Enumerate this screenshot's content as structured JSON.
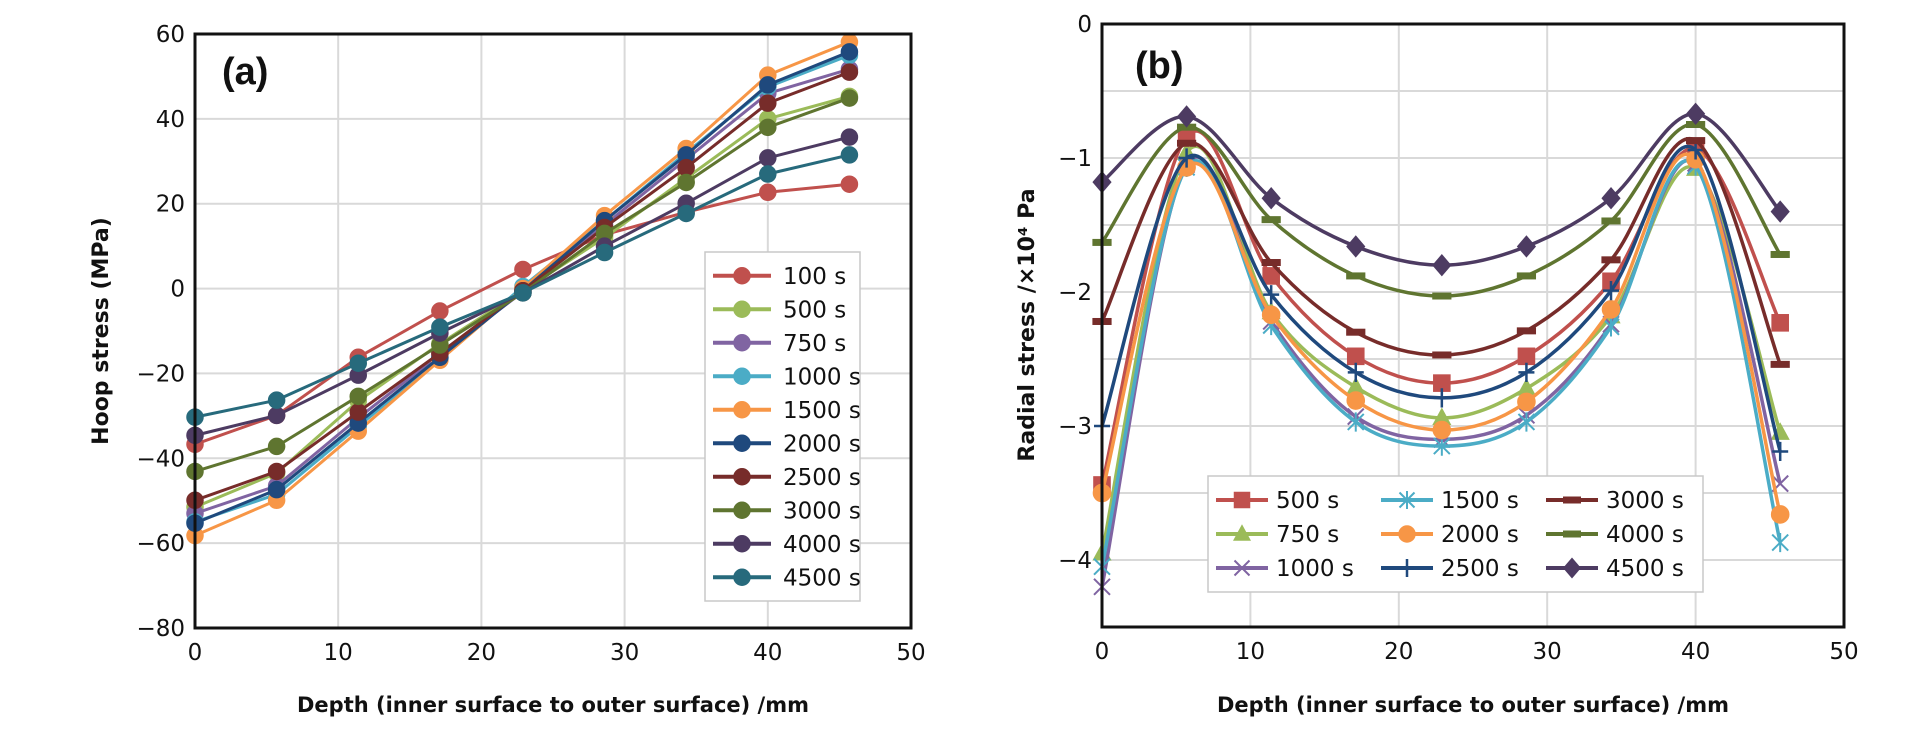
{
  "chart_data": [
    {
      "id": "a",
      "type": "line",
      "panel_label": "(a)",
      "title": "",
      "xlabel": "Depth (inner surface to outer surface) /mm",
      "ylabel": "Hoop stress (MPa)",
      "xlim": [
        0,
        50
      ],
      "ylim": [
        -80,
        60
      ],
      "xticks": [
        0,
        10,
        20,
        30,
        40,
        50
      ],
      "yticks": [
        -80,
        -60,
        -40,
        -20,
        0,
        20,
        40,
        60
      ],
      "grid": true,
      "smooth": false,
      "legend_position": "center-right",
      "legend_columns": 1,
      "x": [
        0,
        5.7,
        11.4,
        17.1,
        22.9,
        28.6,
        34.3,
        40,
        45.7
      ],
      "series": [
        {
          "name": "100 s",
          "color": "#c0504d",
          "marker": "circle",
          "values": [
            -36.7,
            -29.9,
            -16.2,
            -5.3,
            4.5,
            12.7,
            18.0,
            22.7,
            24.6
          ]
        },
        {
          "name": "500 s",
          "color": "#9bbb59",
          "marker": "circle",
          "values": [
            -51.5,
            -43.5,
            -26.5,
            -13.0,
            -0.5,
            12.0,
            26.0,
            40.0,
            45.3
          ]
        },
        {
          "name": "750 s",
          "color": "#8064a2",
          "marker": "circle",
          "values": [
            -53.0,
            -46.5,
            -30.5,
            -15.5,
            -0.8,
            15.0,
            30.5,
            46.0,
            51.7
          ]
        },
        {
          "name": "1000 s",
          "color": "#4bacc6",
          "marker": "circle",
          "values": [
            -55.0,
            -48.5,
            -32.5,
            -16.5,
            0.5,
            16.0,
            32.0,
            47.5,
            55.0
          ]
        },
        {
          "name": "1500 s",
          "color": "#f79646",
          "marker": "circle",
          "values": [
            -58.2,
            -49.9,
            -33.6,
            -16.9,
            0.0,
            17.2,
            33.0,
            50.3,
            58.1
          ]
        },
        {
          "name": "2000 s",
          "color": "#1f497d",
          "marker": "circle",
          "values": [
            -55.3,
            -47.4,
            -31.7,
            -16.2,
            -0.5,
            16.0,
            31.5,
            48.0,
            55.8
          ]
        },
        {
          "name": "2500 s",
          "color": "#772c2a",
          "marker": "circle",
          "values": [
            -49.9,
            -43.1,
            -29.1,
            -15.2,
            -0.5,
            14.4,
            28.5,
            43.7,
            51.0
          ]
        },
        {
          "name": "3000 s",
          "color": "#5f7530",
          "marker": "circle",
          "values": [
            -43.1,
            -37.2,
            -25.4,
            -13.3,
            -1.0,
            13.0,
            25.0,
            38.0,
            44.9
          ]
        },
        {
          "name": "4000 s",
          "color": "#4d3b62",
          "marker": "circle",
          "values": [
            -34.6,
            -29.9,
            -20.4,
            -10.5,
            -1.0,
            10.0,
            20.1,
            30.8,
            35.7
          ]
        },
        {
          "name": "4500 s",
          "color": "#276a7c",
          "marker": "circle",
          "values": [
            -30.3,
            -26.3,
            -17.6,
            -9.1,
            -1.0,
            8.5,
            17.7,
            27.0,
            31.5
          ]
        }
      ]
    },
    {
      "id": "b",
      "type": "line",
      "panel_label": "(b)",
      "title": "",
      "xlabel": "Depth (inner surface to outer surface) /mm",
      "ylabel": "Radial stress /×10⁴ Pa",
      "xlim": [
        0,
        50
      ],
      "ylim": [
        -4.5,
        0
      ],
      "xticks": [
        0,
        10,
        20,
        30,
        40,
        50
      ],
      "yticks": [
        -4,
        -3,
        -2,
        -1,
        0
      ],
      "minor_grid_step": 0.5,
      "grid": true,
      "smooth": true,
      "legend_position": "bottom-left",
      "legend_columns": 3,
      "x": [
        0,
        5.7,
        11.4,
        17.1,
        22.9,
        28.6,
        34.3,
        40,
        45.7
      ],
      "series": [
        {
          "name": "500 s",
          "color": "#c0504d",
          "marker": "square",
          "values": [
            -3.44,
            -0.84,
            -1.88,
            -2.48,
            -2.68,
            -2.48,
            -1.92,
            -0.93,
            -2.23
          ]
        },
        {
          "name": "750 s",
          "color": "#9bbb59",
          "marker": "triangle",
          "values": [
            -3.95,
            -0.96,
            -2.15,
            -2.71,
            -2.94,
            -2.72,
            -2.18,
            -1.08,
            -3.05
          ]
        },
        {
          "name": "1000 s",
          "color": "#8064a2",
          "marker": "x",
          "values": [
            -4.2,
            -1.05,
            -2.22,
            -2.93,
            -3.1,
            -2.92,
            -2.24,
            -1.04,
            -3.43
          ]
        },
        {
          "name": "1500 s",
          "color": "#4bacc6",
          "marker": "asterisk",
          "values": [
            -4.05,
            -1.07,
            -2.25,
            -2.97,
            -3.15,
            -2.97,
            -2.26,
            -1.06,
            -3.87
          ]
        },
        {
          "name": "2000 s",
          "color": "#f79646",
          "marker": "circle",
          "values": [
            -3.5,
            -1.07,
            -2.17,
            -2.81,
            -3.03,
            -2.82,
            -2.13,
            -1.01,
            -3.66
          ]
        },
        {
          "name": "2500 s",
          "color": "#1f497d",
          "marker": "plus",
          "values": [
            -3.0,
            -1.0,
            -2.02,
            -2.6,
            -2.79,
            -2.6,
            -1.99,
            -0.94,
            -3.19
          ]
        },
        {
          "name": "3000 s",
          "color": "#772c2a",
          "marker": "dash",
          "values": [
            -2.22,
            -0.89,
            -1.78,
            -2.3,
            -2.47,
            -2.29,
            -1.76,
            -0.87,
            -2.54
          ]
        },
        {
          "name": "4000 s",
          "color": "#5f7530",
          "marker": "dash",
          "values": [
            -1.63,
            -0.77,
            -1.46,
            -1.88,
            -2.03,
            -1.88,
            -1.47,
            -0.75,
            -1.72
          ]
        },
        {
          "name": "4500 s",
          "color": "#4d3b62",
          "marker": "diamond",
          "values": [
            -1.18,
            -0.69,
            -1.3,
            -1.66,
            -1.8,
            -1.66,
            -1.3,
            -0.67,
            -1.4
          ]
        }
      ]
    }
  ]
}
